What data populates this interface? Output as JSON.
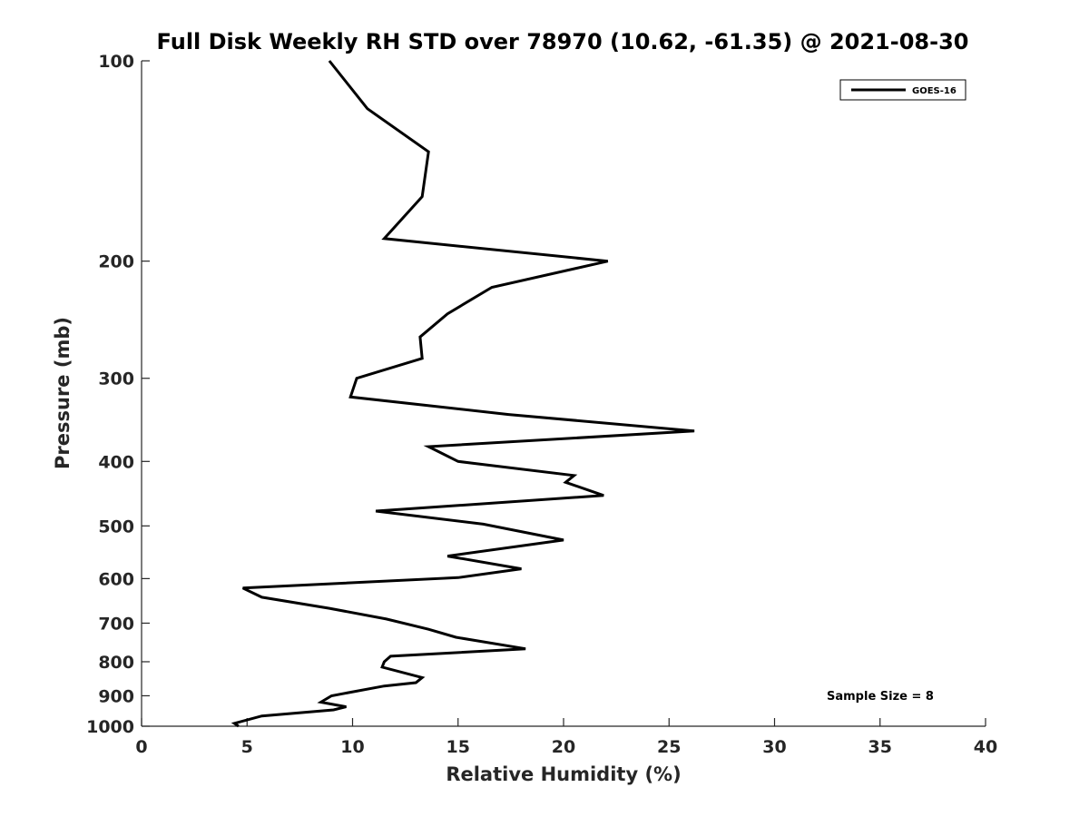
{
  "chart_data": {
    "type": "line",
    "title": "Full Disk Weekly RH STD over 78970 (10.62, -61.35) @ 2021-08-30",
    "xlabel": "Relative Humidity (%)",
    "ylabel": "Pressure (mb)",
    "xlim": [
      0,
      40
    ],
    "ylim": [
      100,
      1000
    ],
    "yscale": "log",
    "x_ticks": [
      0,
      5,
      10,
      15,
      20,
      25,
      30,
      35,
      40
    ],
    "y_ticks": [
      100,
      200,
      300,
      400,
      500,
      600,
      700,
      800,
      900,
      1000
    ],
    "legend": {
      "position": "top-right",
      "entries": [
        "GOES-16"
      ]
    },
    "annotation": "Sample Size = 8",
    "series": [
      {
        "name": "GOES-16",
        "color": "#000000",
        "points": [
          [
            8.9,
            100
          ],
          [
            10.7,
            118
          ],
          [
            13.6,
            137
          ],
          [
            13.3,
            160
          ],
          [
            11.5,
            185
          ],
          [
            22.1,
            200
          ],
          [
            16.6,
            219
          ],
          [
            14.5,
            240
          ],
          [
            13.2,
            260
          ],
          [
            13.3,
            280
          ],
          [
            10.2,
            300
          ],
          [
            9.9,
            320
          ],
          [
            17.4,
            340
          ],
          [
            26.2,
            360
          ],
          [
            13.6,
            380
          ],
          [
            15.0,
            400
          ],
          [
            20.5,
            420
          ],
          [
            20.1,
            430
          ],
          [
            21.9,
            450
          ],
          [
            11.1,
            475
          ],
          [
            16.2,
            497
          ],
          [
            20.0,
            525
          ],
          [
            14.5,
            555
          ],
          [
            18.0,
            580
          ],
          [
            15.0,
            598
          ],
          [
            4.8,
            620
          ],
          [
            5.7,
            640
          ],
          [
            8.9,
            665
          ],
          [
            11.6,
            690
          ],
          [
            13.6,
            715
          ],
          [
            14.9,
            735
          ],
          [
            18.2,
            765
          ],
          [
            11.8,
            785
          ],
          [
            11.5,
            800
          ],
          [
            11.4,
            815
          ],
          [
            13.3,
            845
          ],
          [
            13.0,
            860
          ],
          [
            11.5,
            870
          ],
          [
            9.0,
            900
          ],
          [
            8.5,
            920
          ],
          [
            9.7,
            935
          ],
          [
            9.1,
            945
          ],
          [
            5.7,
            965
          ],
          [
            4.4,
            990
          ],
          [
            4.6,
            1000
          ]
        ]
      }
    ]
  }
}
